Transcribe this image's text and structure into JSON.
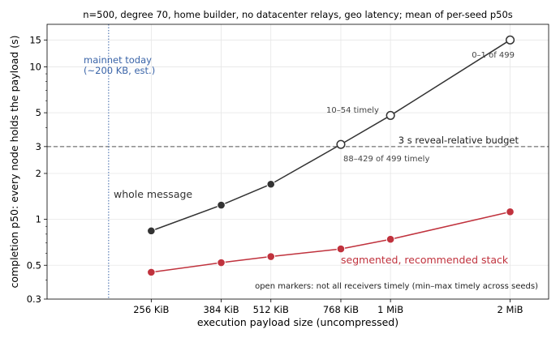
{
  "chart_data": {
    "type": "line",
    "title": "n=500, degree 70, home builder, no datacenter relays, geo latency; mean of per-seed p50s",
    "xlabel": "execution payload size (uncompressed)",
    "ylabel": "completion p50: every node holds the payload (s)",
    "xscale": "log2",
    "yscale": "log",
    "xlim_kib": [
      140,
      2560
    ],
    "ylim": [
      0.3,
      19
    ],
    "grid": true,
    "x_kib": [
      256,
      384,
      512,
      768,
      1024,
      2048
    ],
    "x_ticks": [
      {
        "kib": 256,
        "label": "256 KiB"
      },
      {
        "kib": 384,
        "label": "384 KiB"
      },
      {
        "kib": 512,
        "label": "512 KiB"
      },
      {
        "kib": 768,
        "label": "768 KiB"
      },
      {
        "kib": 1024,
        "label": "1 MiB"
      },
      {
        "kib": 2048,
        "label": "2 MiB"
      }
    ],
    "y_ticks": [
      {
        "value": 0.3,
        "label": "0.3"
      },
      {
        "value": 0.5,
        "label": "0.5"
      },
      {
        "value": 1,
        "label": "1"
      },
      {
        "value": 2,
        "label": "2"
      },
      {
        "value": 3,
        "label": "3"
      },
      {
        "value": 5,
        "label": "5"
      },
      {
        "value": 10,
        "label": "10"
      },
      {
        "value": 15,
        "label": "15"
      }
    ],
    "series": [
      {
        "name": "whole message",
        "color": "#333333",
        "values": [
          0.84,
          1.24,
          1.7,
          3.1,
          4.8,
          15.0
        ],
        "open": [
          false,
          false,
          false,
          true,
          true,
          true
        ]
      },
      {
        "name": "segmented, recommended stack",
        "color": "#c0323d",
        "values": [
          0.45,
          0.52,
          0.57,
          0.64,
          0.74,
          1.12
        ],
        "open": [
          false,
          false,
          false,
          false,
          false,
          false
        ]
      }
    ],
    "reference_lines": {
      "horizontal": {
        "value": 3,
        "label": "3 s reveal-relative budget"
      },
      "vertical": {
        "kib": 200,
        "label_line1": "mainnet today",
        "label_line2": "(~200 KB, est.)",
        "color": "#3a64a8"
      }
    },
    "annotations": {
      "point_2mib": "0–1 of 499",
      "point_1mib": "10–54 timely",
      "point_768kib": "88–429 of 499 timely",
      "footnote": "open markers: not all receivers timely (min–max timely across seeds)"
    }
  }
}
